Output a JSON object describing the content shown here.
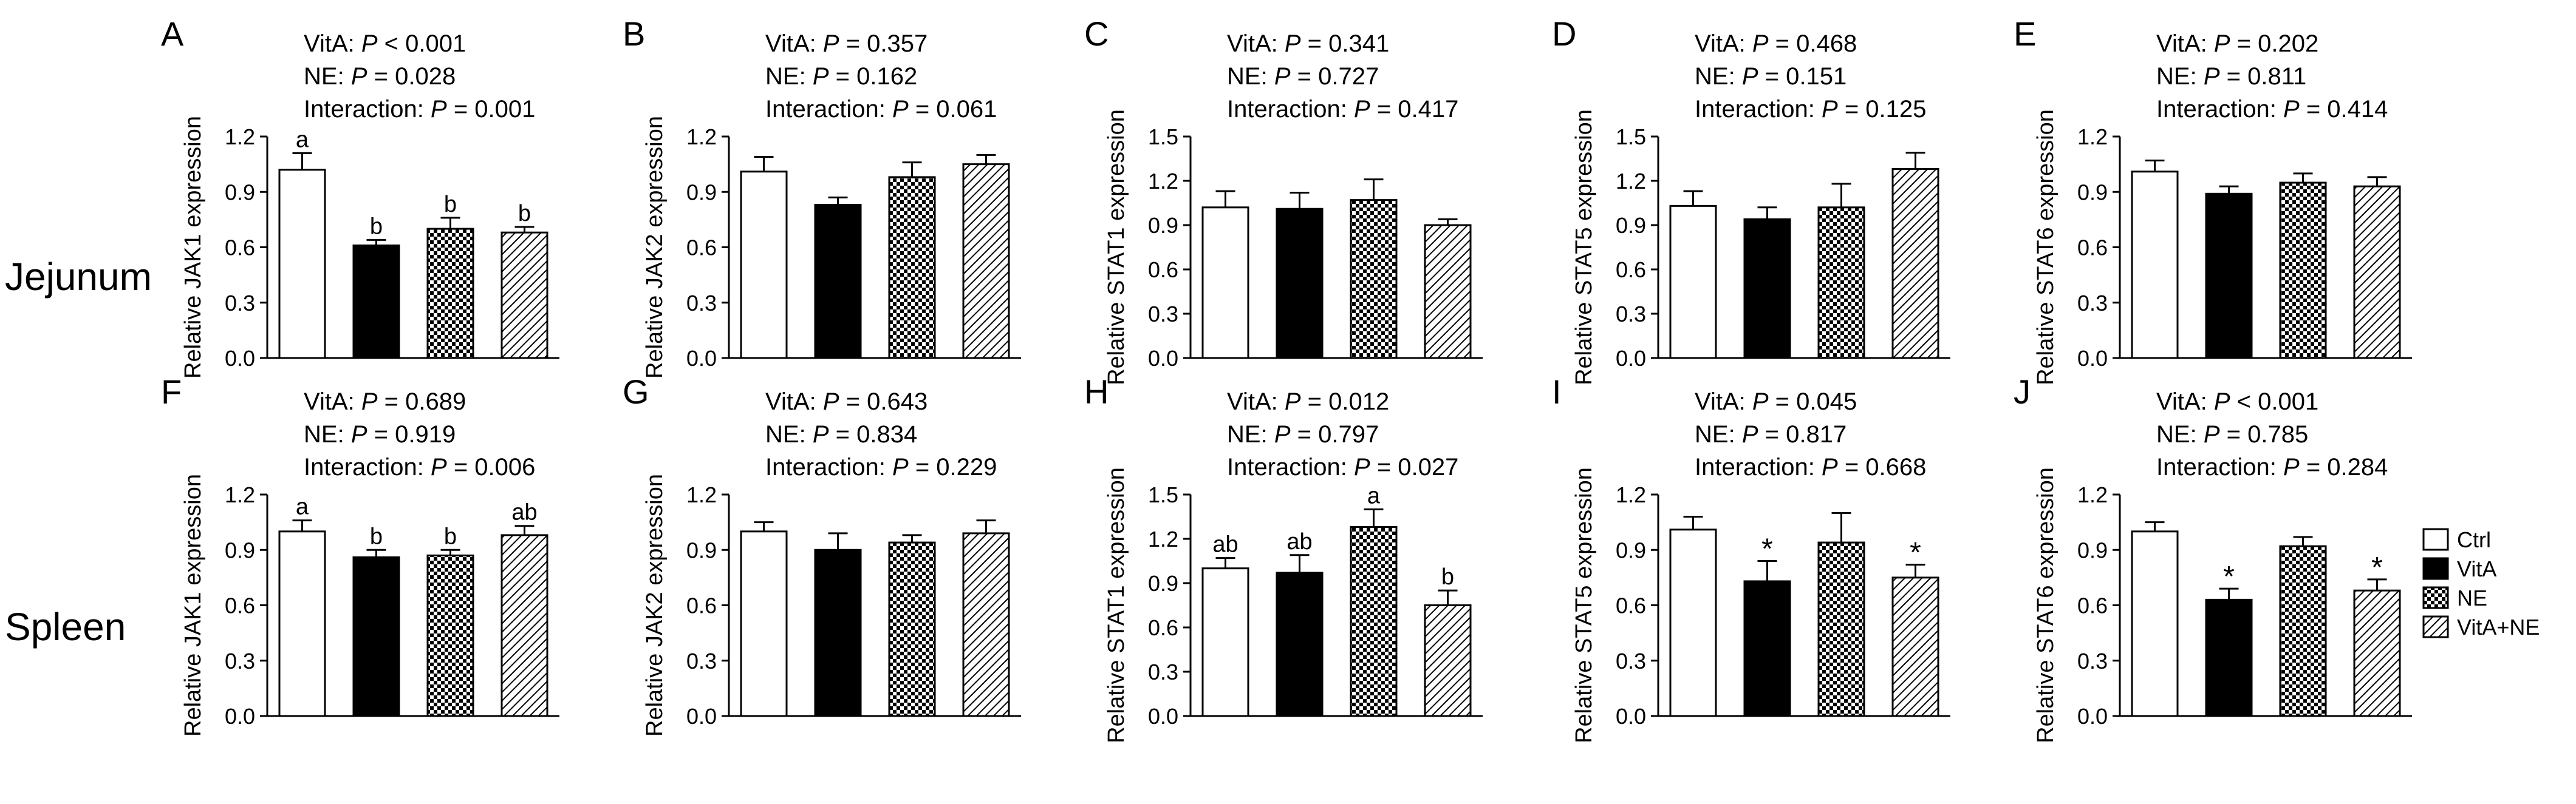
{
  "figure": {
    "row_labels": [
      "Jejunum",
      "Spleen"
    ],
    "legend": [
      {
        "label": "Ctrl",
        "pattern": "white"
      },
      {
        "label": "VitA",
        "pattern": "black"
      },
      {
        "label": "NE",
        "pattern": "checker"
      },
      {
        "label": "VitA+NE",
        "pattern": "hatch"
      }
    ]
  },
  "chart_data": [
    {
      "panel": "A",
      "type": "bar",
      "row": "Jejunum",
      "title": "",
      "ylabel": "Relative JAK1 expression",
      "categories": [
        "Ctrl",
        "VitA",
        "NE",
        "VitA+NE"
      ],
      "values": [
        1.02,
        0.61,
        0.7,
        0.68
      ],
      "errors": [
        0.09,
        0.03,
        0.06,
        0.03
      ],
      "labels": [
        "a",
        "b",
        "b",
        "b"
      ],
      "ylim": [
        0,
        1.2
      ],
      "yticks": [
        "0.0",
        "0.3",
        "0.6",
        "0.9",
        "1.2"
      ],
      "stats": [
        {
          "name": "VitA",
          "op": "<",
          "value": "0.001"
        },
        {
          "name": "NE",
          "op": "=",
          "value": "0.028"
        },
        {
          "name": "Interaction",
          "op": "=",
          "value": "0.001"
        }
      ]
    },
    {
      "panel": "B",
      "type": "bar",
      "row": "Jejunum",
      "title": "",
      "ylabel": "Relative JAK2 expression",
      "categories": [
        "Ctrl",
        "VitA",
        "NE",
        "VitA+NE"
      ],
      "values": [
        1.01,
        0.83,
        0.98,
        1.05
      ],
      "errors": [
        0.08,
        0.04,
        0.08,
        0.05
      ],
      "labels": [
        "",
        "",
        "",
        ""
      ],
      "ylim": [
        0,
        1.2
      ],
      "yticks": [
        "0.0",
        "0.3",
        "0.6",
        "0.9",
        "1.2"
      ],
      "stats": [
        {
          "name": "VitA",
          "op": "=",
          "value": "0.357"
        },
        {
          "name": "NE",
          "op": "=",
          "value": "0.162"
        },
        {
          "name": "Interaction",
          "op": "=",
          "value": "0.061"
        }
      ]
    },
    {
      "panel": "C",
      "type": "bar",
      "row": "Jejunum",
      "title": "",
      "ylabel": "Relative STAT1 expression",
      "categories": [
        "Ctrl",
        "VitA",
        "NE",
        "VitA+NE"
      ],
      "values": [
        1.02,
        1.01,
        1.07,
        0.9
      ],
      "errors": [
        0.11,
        0.11,
        0.14,
        0.04
      ],
      "labels": [
        "",
        "",
        "",
        ""
      ],
      "ylim": [
        0,
        1.5
      ],
      "yticks": [
        "0.0",
        "0.3",
        "0.6",
        "0.9",
        "1.2",
        "1.5"
      ],
      "stats": [
        {
          "name": "VitA",
          "op": "=",
          "value": "0.341"
        },
        {
          "name": "NE",
          "op": "=",
          "value": "0.727"
        },
        {
          "name": "Interaction",
          "op": "=",
          "value": "0.417"
        }
      ]
    },
    {
      "panel": "D",
      "type": "bar",
      "row": "Jejunum",
      "title": "",
      "ylabel": "Relative STAT5 expression",
      "categories": [
        "Ctrl",
        "VitA",
        "NE",
        "VitA+NE"
      ],
      "values": [
        1.03,
        0.94,
        1.02,
        1.28
      ],
      "errors": [
        0.1,
        0.08,
        0.16,
        0.11
      ],
      "labels": [
        "",
        "",
        "",
        ""
      ],
      "ylim": [
        0,
        1.5
      ],
      "yticks": [
        "0.0",
        "0.3",
        "0.6",
        "0.9",
        "1.2",
        "1.5"
      ],
      "stats": [
        {
          "name": "VitA",
          "op": "=",
          "value": "0.468"
        },
        {
          "name": "NE",
          "op": "=",
          "value": "0.151"
        },
        {
          "name": "Interaction",
          "op": "=",
          "value": "0.125"
        }
      ]
    },
    {
      "panel": "E",
      "type": "bar",
      "row": "Jejunum",
      "title": "",
      "ylabel": "Relative STAT6 expression",
      "categories": [
        "Ctrl",
        "VitA",
        "NE",
        "VitA+NE"
      ],
      "values": [
        1.01,
        0.89,
        0.95,
        0.93
      ],
      "errors": [
        0.06,
        0.04,
        0.05,
        0.05
      ],
      "labels": [
        "",
        "",
        "",
        ""
      ],
      "ylim": [
        0,
        1.2
      ],
      "yticks": [
        "0.0",
        "0.3",
        "0.6",
        "0.9",
        "1.2"
      ],
      "stats": [
        {
          "name": "VitA",
          "op": "=",
          "value": "0.202"
        },
        {
          "name": "NE",
          "op": "=",
          "value": "0.811"
        },
        {
          "name": "Interaction",
          "op": "=",
          "value": "0.414"
        }
      ]
    },
    {
      "panel": "F",
      "type": "bar",
      "row": "Spleen",
      "title": "",
      "ylabel": "Relative JAK1 expression",
      "categories": [
        "Ctrl",
        "VitA",
        "NE",
        "VitA+NE"
      ],
      "values": [
        1.0,
        0.86,
        0.87,
        0.98
      ],
      "errors": [
        0.06,
        0.04,
        0.03,
        0.05
      ],
      "labels": [
        "a",
        "b",
        "b",
        "ab"
      ],
      "ylim": [
        0,
        1.2
      ],
      "yticks": [
        "0.0",
        "0.3",
        "0.6",
        "0.9",
        "1.2"
      ],
      "stats": [
        {
          "name": "VitA",
          "op": "=",
          "value": "0.689"
        },
        {
          "name": "NE",
          "op": "=",
          "value": "0.919"
        },
        {
          "name": "Interaction",
          "op": "=",
          "value": "0.006"
        }
      ]
    },
    {
      "panel": "G",
      "type": "bar",
      "row": "Spleen",
      "title": "",
      "ylabel": "Relative JAK2 expression",
      "categories": [
        "Ctrl",
        "VitA",
        "NE",
        "VitA+NE"
      ],
      "values": [
        1.0,
        0.9,
        0.94,
        0.99
      ],
      "errors": [
        0.05,
        0.09,
        0.04,
        0.07
      ],
      "labels": [
        "",
        "",
        "",
        ""
      ],
      "ylim": [
        0,
        1.2
      ],
      "yticks": [
        "0.0",
        "0.3",
        "0.6",
        "0.9",
        "1.2"
      ],
      "stats": [
        {
          "name": "VitA",
          "op": "=",
          "value": "0.643"
        },
        {
          "name": "NE",
          "op": "=",
          "value": "0.834"
        },
        {
          "name": "Interaction",
          "op": "=",
          "value": "0.229"
        }
      ]
    },
    {
      "panel": "H",
      "type": "bar",
      "row": "Spleen",
      "title": "",
      "ylabel": "Relative STAT1 expression",
      "categories": [
        "Ctrl",
        "VitA",
        "NE",
        "VitA+NE"
      ],
      "values": [
        1.0,
        0.97,
        1.28,
        0.75
      ],
      "errors": [
        0.07,
        0.12,
        0.12,
        0.1
      ],
      "labels": [
        "ab",
        "ab",
        "a",
        "b"
      ],
      "ylim": [
        0,
        1.5
      ],
      "yticks": [
        "0.0",
        "0.3",
        "0.6",
        "0.9",
        "1.2",
        "1.5"
      ],
      "stats": [
        {
          "name": "VitA",
          "op": "=",
          "value": "0.012"
        },
        {
          "name": "NE",
          "op": "=",
          "value": "0.797"
        },
        {
          "name": "Interaction",
          "op": "=",
          "value": "0.027"
        }
      ]
    },
    {
      "panel": "I",
      "type": "bar",
      "row": "Spleen",
      "title": "",
      "ylabel": "Relative STAT5 expression",
      "categories": [
        "Ctrl",
        "VitA",
        "NE",
        "VitA+NE"
      ],
      "values": [
        1.01,
        0.73,
        0.94,
        0.75
      ],
      "errors": [
        0.07,
        0.11,
        0.16,
        0.07
      ],
      "labels": [
        "",
        "*",
        "",
        "*"
      ],
      "ylim": [
        0,
        1.2
      ],
      "yticks": [
        "0.0",
        "0.3",
        "0.6",
        "0.9",
        "1.2"
      ],
      "stats": [
        {
          "name": "VitA",
          "op": "=",
          "value": "0.045"
        },
        {
          "name": "NE",
          "op": "=",
          "value": "0.817"
        },
        {
          "name": "Interaction",
          "op": "=",
          "value": "0.668"
        }
      ]
    },
    {
      "panel": "J",
      "type": "bar",
      "row": "Spleen",
      "title": "",
      "ylabel": "Relative STAT6 expression",
      "categories": [
        "Ctrl",
        "VitA",
        "NE",
        "VitA+NE"
      ],
      "values": [
        1.0,
        0.63,
        0.92,
        0.68
      ],
      "errors": [
        0.05,
        0.06,
        0.05,
        0.06
      ],
      "labels": [
        "",
        "*",
        "",
        "*"
      ],
      "ylim": [
        0,
        1.2
      ],
      "yticks": [
        "0.0",
        "0.3",
        "0.6",
        "0.9",
        "1.2"
      ],
      "stats": [
        {
          "name": "VitA",
          "op": "<",
          "value": "0.001"
        },
        {
          "name": "NE",
          "op": "=",
          "value": "0.785"
        },
        {
          "name": "Interaction",
          "op": "=",
          "value": "0.284"
        }
      ]
    }
  ]
}
